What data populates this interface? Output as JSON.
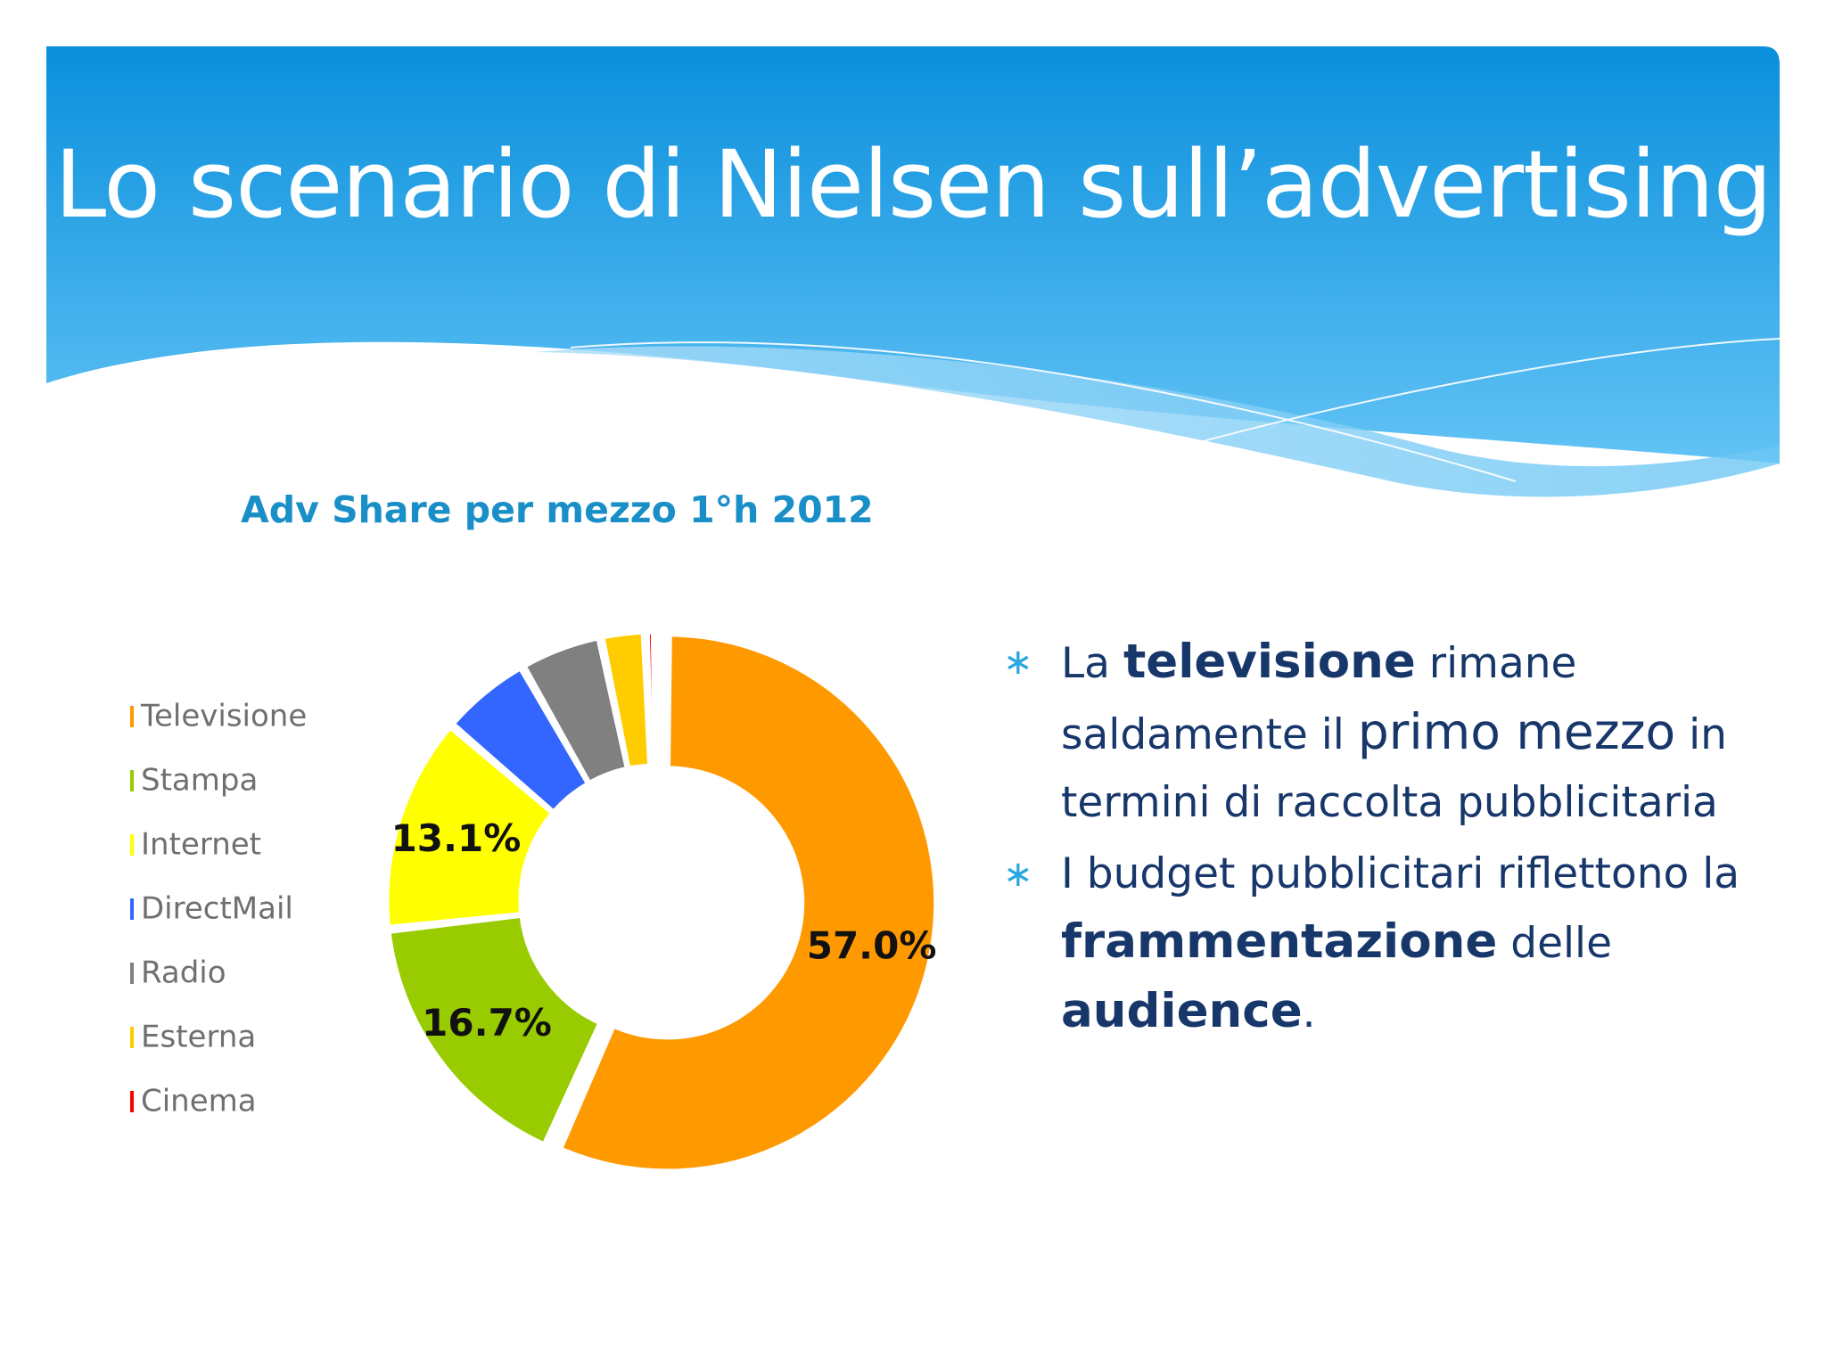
{
  "slide": {
    "title": "Lo scenario di Nielsen sull’advertising",
    "colors": {
      "banner_top": "#0a8fdc",
      "banner_bottom": "#62c3f5",
      "bullet_text": "#17376b",
      "bullet_marker": "#2aa7de"
    }
  },
  "chart_data": {
    "type": "pie",
    "donut": true,
    "title": "Adv Share per mezzo 1°h 2012",
    "legend_position": "left",
    "categories": [
      "Televisione",
      "Stampa",
      "Internet",
      "DirectMail",
      "Radio",
      "Esterna",
      "Cinema"
    ],
    "values": [
      57.0,
      16.7,
      13.1,
      5.5,
      5.0,
      2.7,
      0.6
    ],
    "data_labels": [
      "57.0%",
      "16.7%",
      "13.1%",
      "",
      "",
      "",
      ""
    ],
    "colors": [
      "#ff9900",
      "#99cc00",
      "#ffff00",
      "#3366ff",
      "#808080",
      "#ffcc00",
      "#ff0000"
    ]
  },
  "bullets": [
    {
      "marker": "∗",
      "segments": [
        {
          "text": "La ",
          "style": "normal"
        },
        {
          "text": "televisione",
          "style": "strong"
        },
        {
          "text": " rimane saldamente il ",
          "style": "normal"
        },
        {
          "text": "primo mezzo",
          "style": "big"
        },
        {
          "text": " in termini di raccolta pubblicitaria",
          "style": "normal"
        }
      ]
    },
    {
      "marker": "∗",
      "segments": [
        {
          "text": "I budget pubblicitari riflettono la ",
          "style": "normal"
        },
        {
          "text": "frammentazione",
          "style": "strong"
        },
        {
          "text": " delle ",
          "style": "normal"
        },
        {
          "text": "audience",
          "style": "strong"
        },
        {
          "text": ".",
          "style": "normal"
        }
      ]
    }
  ]
}
